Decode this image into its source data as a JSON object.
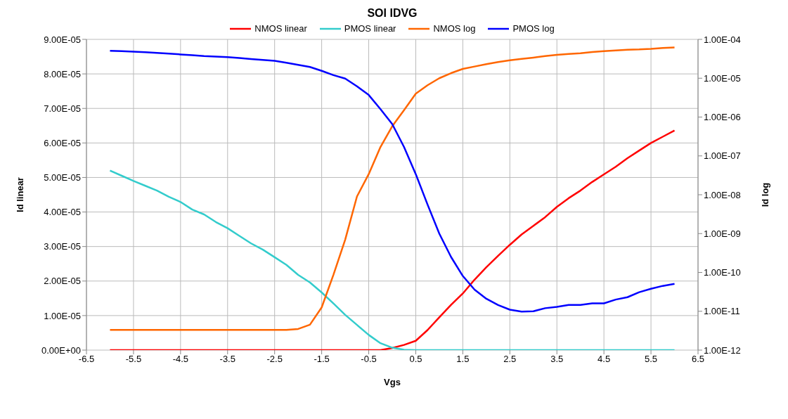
{
  "chart_data": {
    "type": "line",
    "title": "SOI IDVG",
    "xlabel": "Vgs",
    "ylabel": "Id linear",
    "y2label": "Id log",
    "x": [
      -6,
      -5.75,
      -5.5,
      -5.25,
      -5,
      -4.75,
      -4.5,
      -4.25,
      -4,
      -3.75,
      -3.5,
      -3.25,
      -3,
      -2.75,
      -2.5,
      -2.25,
      -2,
      -1.75,
      -1.5,
      -1.25,
      -1,
      -0.75,
      -0.5,
      -0.25,
      0,
      0.25,
      0.5,
      0.75,
      1,
      1.25,
      1.5,
      1.75,
      2,
      2.25,
      2.5,
      2.75,
      3,
      3.25,
      3.5,
      3.75,
      4,
      4.25,
      4.5,
      4.75,
      5,
      5.25,
      5.5,
      5.75,
      6
    ],
    "series": [
      {
        "name": "NMOS linear",
        "color": "#ff0000",
        "values": [
          0,
          0,
          0,
          0,
          0,
          0,
          0,
          0,
          0,
          0,
          0,
          0,
          0,
          0,
          0,
          0,
          0,
          0,
          0,
          0,
          0,
          0,
          0,
          0,
          6e-07,
          1.5e-06,
          2.7e-06,
          5.8e-06,
          9.5e-06,
          1.31e-05,
          1.64e-05,
          2.04e-05,
          2.4e-05,
          2.73e-05,
          3.05e-05,
          3.35e-05,
          3.6e-05,
          3.85e-05,
          4.15e-05,
          4.4e-05,
          4.62e-05,
          4.87e-05,
          5.09e-05,
          5.31e-05,
          5.56e-05,
          5.78e-05,
          6e-05,
          6.18e-05,
          6.36e-05
        ]
      },
      {
        "name": "PMOS linear",
        "color": "#33cccc",
        "values": [
          5.2e-05,
          5.05e-05,
          4.9e-05,
          4.76e-05,
          4.62e-05,
          4.44e-05,
          4.29e-05,
          4.07e-05,
          3.93e-05,
          3.71e-05,
          3.53e-05,
          3.31e-05,
          3.09e-05,
          2.91e-05,
          2.69e-05,
          2.47e-05,
          2.18e-05,
          1.96e-05,
          1.67e-05,
          1.35e-05,
          1.02e-05,
          7.3e-06,
          4.4e-06,
          2e-06,
          7e-07,
          1e-07,
          0,
          0,
          0,
          0,
          0,
          0,
          0,
          0,
          0,
          0,
          0,
          0,
          0,
          0,
          0,
          0,
          0,
          0,
          0,
          0,
          0,
          0,
          0
        ]
      },
      {
        "name": "NMOS log",
        "color": "#ff6600",
        "axis": "y2",
        "values": [
          3.3e-12,
          3.3e-12,
          3.3e-12,
          3.3e-12,
          3.3e-12,
          3.3e-12,
          3.3e-12,
          3.3e-12,
          3.3e-12,
          3.3e-12,
          3.3e-12,
          3.3e-12,
          3.3e-12,
          3.3e-12,
          3.3e-12,
          3.3e-12,
          3.5e-12,
          4.5e-12,
          1.26e-11,
          8.7e-11,
          7e-10,
          9e-09,
          3.4e-08,
          1.7e-07,
          5.8e-07,
          1.5e-06,
          4e-06,
          6.6e-06,
          1e-05,
          1.35e-05,
          1.74e-05,
          2e-05,
          2.3e-05,
          2.6e-05,
          2.9e-05,
          3.15e-05,
          3.4e-05,
          3.7e-05,
          4e-05,
          4.2e-05,
          4.4e-05,
          4.7e-05,
          5e-05,
          5.2e-05,
          5.4e-05,
          5.5e-05,
          5.7e-05,
          6e-05,
          6.2e-05
        ]
      },
      {
        "name": "PMOS log",
        "color": "#0000ff",
        "axis": "y2",
        "values": [
          5.1e-05,
          4.95e-05,
          4.8e-05,
          4.65e-05,
          4.5e-05,
          4.3e-05,
          4.1e-05,
          3.9e-05,
          3.7e-05,
          3.6e-05,
          3.5e-05,
          3.3e-05,
          3.1e-05,
          2.95e-05,
          2.8e-05,
          2.5e-05,
          2.2e-05,
          1.95e-05,
          1.55e-05,
          1.2e-05,
          9.8e-06,
          6.2e-06,
          3.7e-06,
          1.6e-06,
          6.6e-07,
          1.7e-07,
          3.4e-08,
          5.6e-09,
          1e-09,
          2.5e-10,
          8.1e-11,
          3.6e-11,
          2.1e-11,
          1.45e-11,
          1.1e-11,
          9.8e-12,
          1e-11,
          1.2e-11,
          1.3e-11,
          1.45e-11,
          1.45e-11,
          1.6e-11,
          1.6e-11,
          2e-11,
          2.3e-11,
          3.1e-11,
          3.8e-11,
          4.5e-11,
          5.1e-11
        ]
      }
    ],
    "xlim": [
      -6.5,
      6.5
    ],
    "xticks": [
      -6.5,
      -5.5,
      -4.5,
      -3.5,
      -2.5,
      -1.5,
      -0.5,
      0.5,
      1.5,
      2.5,
      3.5,
      4.5,
      5.5,
      6.5
    ],
    "ylim": [
      0,
      9e-05
    ],
    "yticks": [
      {
        "value": 0,
        "label": "0.00E+00"
      },
      {
        "value": 1e-05,
        "label": "1.00E-05"
      },
      {
        "value": 2e-05,
        "label": "2.00E-05"
      },
      {
        "value": 3e-05,
        "label": "3.00E-05"
      },
      {
        "value": 4e-05,
        "label": "4.00E-05"
      },
      {
        "value": 5e-05,
        "label": "5.00E-05"
      },
      {
        "value": 6e-05,
        "label": "6.00E-05"
      },
      {
        "value": 7e-05,
        "label": "7.00E-05"
      },
      {
        "value": 8e-05,
        "label": "8.00E-05"
      },
      {
        "value": 9e-05,
        "label": "9.00E-05"
      }
    ],
    "y2lim": [
      1e-12,
      0.0001
    ],
    "y2ticks": [
      {
        "value": 1e-12,
        "label": "1.00E-12"
      },
      {
        "value": 1e-11,
        "label": "1.00E-11"
      },
      {
        "value": 1e-10,
        "label": "1.00E-10"
      },
      {
        "value": 1e-09,
        "label": "1.00E-09"
      },
      {
        "value": 1e-08,
        "label": "1.00E-08"
      },
      {
        "value": 1e-07,
        "label": "1.00E-07"
      },
      {
        "value": 1e-06,
        "label": "1.00E-06"
      },
      {
        "value": 1e-05,
        "label": "1.00E-05"
      },
      {
        "value": 0.0001,
        "label": "1.00E-04"
      }
    ],
    "log": "y2",
    "grid": true,
    "legend": "top",
    "marker": "none",
    "line_style": "solid"
  }
}
